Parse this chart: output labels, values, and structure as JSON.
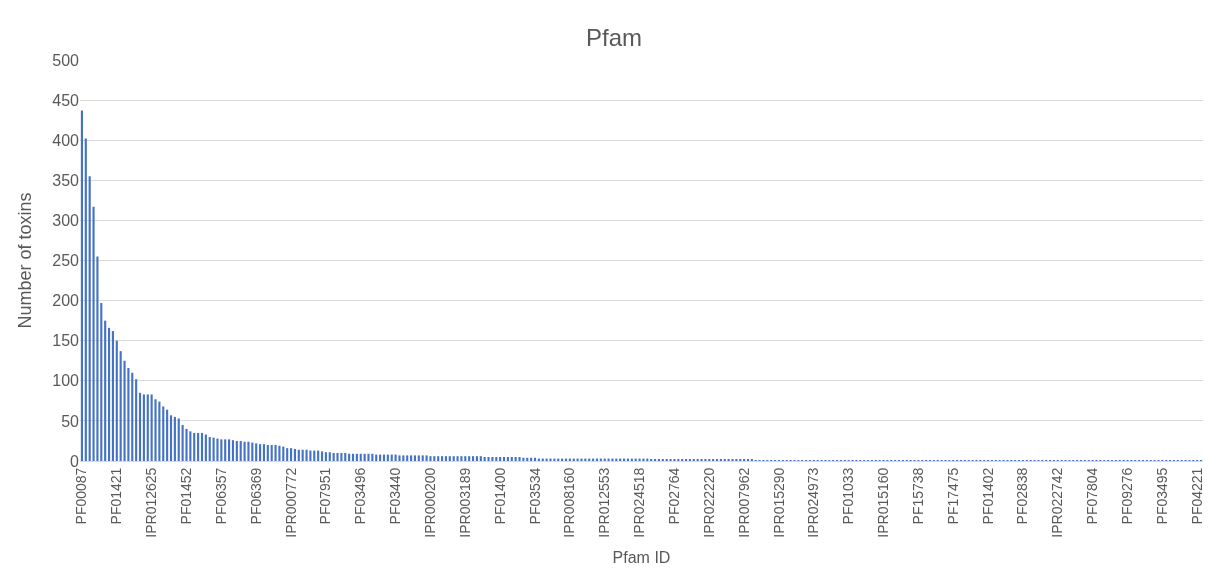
{
  "chart_data": {
    "type": "bar",
    "title": "Pfam",
    "xlabel": "Pfam ID",
    "ylabel": "Number of toxins",
    "categories": [
      "PF00087",
      null,
      null,
      null,
      null,
      null,
      null,
      null,
      null,
      "PF01421",
      null,
      null,
      null,
      null,
      null,
      null,
      null,
      null,
      "IPR012625",
      null,
      null,
      null,
      null,
      null,
      null,
      null,
      null,
      "PF01452",
      null,
      null,
      null,
      null,
      null,
      null,
      null,
      null,
      "PF06357",
      null,
      null,
      null,
      null,
      null,
      null,
      null,
      null,
      "PF06369",
      null,
      null,
      null,
      null,
      null,
      null,
      null,
      null,
      "IPR000772",
      null,
      null,
      null,
      null,
      null,
      null,
      null,
      null,
      "PF07951",
      null,
      null,
      null,
      null,
      null,
      null,
      null,
      null,
      "PF03496",
      null,
      null,
      null,
      null,
      null,
      null,
      null,
      null,
      "PF03440",
      null,
      null,
      null,
      null,
      null,
      null,
      null,
      null,
      "IPR000200",
      null,
      null,
      null,
      null,
      null,
      null,
      null,
      null,
      "IPR003189",
      null,
      null,
      null,
      null,
      null,
      null,
      null,
      null,
      "PF01400",
      null,
      null,
      null,
      null,
      null,
      null,
      null,
      null,
      "PF03534",
      null,
      null,
      null,
      null,
      null,
      null,
      null,
      null,
      "IPR008160",
      null,
      null,
      null,
      null,
      null,
      null,
      null,
      null,
      "IPR012553",
      null,
      null,
      null,
      null,
      null,
      null,
      null,
      null,
      "IPR024518",
      null,
      null,
      null,
      null,
      null,
      null,
      null,
      null,
      "PF02764",
      null,
      null,
      null,
      null,
      null,
      null,
      null,
      null,
      "IPR022220",
      null,
      null,
      null,
      null,
      null,
      null,
      null,
      null,
      "IPR007962",
      null,
      null,
      null,
      null,
      null,
      null,
      null,
      null,
      "IPR015290",
      null,
      null,
      null,
      null,
      null,
      null,
      null,
      null,
      "IPR024973",
      null,
      null,
      null,
      null,
      null,
      null,
      null,
      null,
      "PF01033",
      null,
      null,
      null,
      null,
      null,
      null,
      null,
      null,
      "IPR015160",
      null,
      null,
      null,
      null,
      null,
      null,
      null,
      null,
      "PF15738",
      null,
      null,
      null,
      null,
      null,
      null,
      null,
      null,
      "PF17475",
      null,
      null,
      null,
      null,
      null,
      null,
      null,
      null,
      "PF01402",
      null,
      null,
      null,
      null,
      null,
      null,
      null,
      null,
      "PF02838",
      null,
      null,
      null,
      null,
      null,
      null,
      null,
      null,
      "IPR022742",
      null,
      null,
      null,
      null,
      null,
      null,
      null,
      null,
      "PF07804",
      null,
      null,
      null,
      null,
      null,
      null,
      null,
      null,
      "PF09276",
      null,
      null,
      null,
      null,
      null,
      null,
      null,
      null,
      "PF03495",
      null,
      null,
      null,
      null,
      null,
      null,
      null,
      null,
      "PF04221",
      null
    ],
    "values": [
      437,
      402,
      355,
      317,
      255,
      197,
      175,
      166,
      162,
      150,
      137,
      125,
      116,
      110,
      102,
      85,
      83,
      83,
      83,
      77,
      74,
      68,
      64,
      57,
      55,
      53,
      45,
      40,
      37,
      35,
      35,
      35,
      33,
      30,
      29,
      28,
      27,
      27,
      27,
      26,
      25,
      25,
      24,
      24,
      23,
      22,
      21,
      21,
      20,
      20,
      20,
      19,
      18,
      16,
      16,
      15,
      14,
      14,
      14,
      13,
      13,
      13,
      12,
      11,
      11,
      10,
      10,
      10,
      10,
      9,
      9,
      9,
      9,
      9,
      9,
      9,
      8,
      8,
      8,
      8,
      8,
      8,
      7,
      7,
      7,
      7,
      7,
      7,
      7,
      7,
      6,
      6,
      6,
      6,
      6,
      6,
      6,
      6,
      6,
      6,
      6,
      6,
      6,
      6,
      5,
      5,
      5,
      5,
      5,
      5,
      5,
      5,
      5,
      5,
      4,
      4,
      4,
      4,
      3,
      3,
      3,
      3,
      3,
      3,
      3,
      3,
      3,
      3,
      3,
      3,
      3,
      3,
      3,
      3,
      3,
      3,
      3,
      3,
      3,
      3,
      3,
      3,
      3,
      3,
      3,
      3,
      3,
      2,
      2,
      2,
      2,
      2,
      2,
      2,
      2,
      2,
      2,
      2,
      2,
      2,
      2,
      2,
      2,
      2,
      2,
      2,
      2,
      2,
      2,
      2,
      2,
      2,
      2,
      2,
      1,
      1,
      1,
      1,
      1,
      1,
      1,
      1,
      1,
      1,
      1,
      1,
      1,
      1,
      1,
      1,
      1,
      1,
      1,
      1,
      1,
      1,
      1,
      1,
      1,
      1,
      1,
      1,
      1,
      1,
      1,
      1,
      1,
      1,
      1,
      1,
      1,
      1,
      1,
      1,
      1,
      1,
      1,
      1,
      1,
      1,
      1,
      1,
      1,
      1,
      1,
      1,
      1,
      1,
      1,
      1,
      1,
      1,
      1,
      1,
      1,
      1,
      1,
      1,
      1,
      1,
      1,
      1,
      1,
      1,
      1,
      1,
      1,
      1,
      1,
      1,
      1,
      1,
      1,
      1,
      1,
      1,
      1,
      1,
      1,
      1,
      1,
      1,
      1,
      1,
      1,
      1,
      1,
      1,
      1,
      1,
      1,
      1,
      1,
      1,
      1,
      1,
      1,
      1,
      1,
      1,
      1,
      1,
      1,
      1,
      1,
      1,
      1,
      1,
      1,
      1
    ],
    "color": "#4472c4",
    "ylim": [
      0,
      500
    ],
    "yticks": [
      0,
      50,
      100,
      150,
      200,
      250,
      300,
      350,
      400,
      450,
      500
    ],
    "grid": "y",
    "legend": false
  }
}
